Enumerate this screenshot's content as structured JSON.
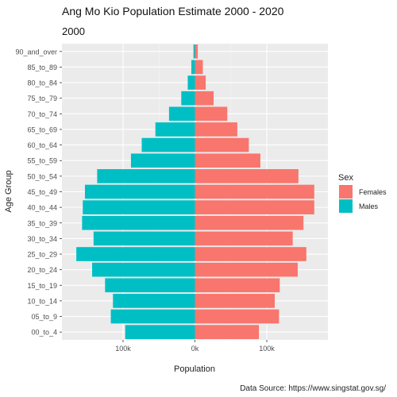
{
  "chart_data": {
    "type": "bar",
    "orientation": "horizontal",
    "title": "Ang Mo Kio Population Estimate 2000 - 2020",
    "subtitle": "2000",
    "xlabel": "Population",
    "ylabel": "Age Group",
    "caption": "Data Source: https://www.singstat.gov.sg/",
    "categories": [
      "00_to_4",
      "05_to_9",
      "10_to_14",
      "15_to_19",
      "20_to_24",
      "25_to_29",
      "30_to_34",
      "35_to_39",
      "40_to_44",
      "45_to_49",
      "50_to_54",
      "55_to_59",
      "60_to_64",
      "65_to_69",
      "70_to_74",
      "75_to_79",
      "80_to_84",
      "85_to_89",
      "90_and_over"
    ],
    "xlim": [
      -185000,
      185000
    ],
    "x_ticks": [
      -100000,
      0,
      100000
    ],
    "x_tick_labels": [
      "100k",
      "0k",
      "100k"
    ],
    "legend": {
      "title": "Sex",
      "position": "right"
    },
    "grid": true,
    "series": [
      {
        "name": "Females",
        "color": "#F8766D",
        "values": [
          89000,
          117000,
          111000,
          118000,
          143000,
          155000,
          136000,
          151000,
          166000,
          166000,
          144000,
          91000,
          75000,
          59000,
          45000,
          26000,
          15000,
          11000,
          4000
        ]
      },
      {
        "name": "Males",
        "color": "#00BFC4",
        "values": [
          -97000,
          -117000,
          -114000,
          -125000,
          -143000,
          -165000,
          -141000,
          -157000,
          -156000,
          -153000,
          -136000,
          -89000,
          -74000,
          -55000,
          -36000,
          -19000,
          -10000,
          -5000,
          -2000
        ]
      }
    ]
  }
}
